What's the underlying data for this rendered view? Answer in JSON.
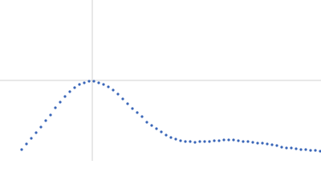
{
  "chart_data": {
    "type": "scatter",
    "color": "#3a66b8",
    "xlim": [
      0,
      400
    ],
    "ylim": [
      0,
      200
    ],
    "reference_lines": {
      "x": 115,
      "y": 100,
      "color": "#d0d0d0"
    },
    "x": [
      27,
      33,
      39,
      45,
      51,
      57,
      63,
      69,
      75,
      81,
      87,
      93,
      99,
      105,
      111,
      117,
      123,
      129,
      135,
      141,
      147,
      153,
      159,
      165,
      171,
      177,
      183,
      189,
      195,
      201,
      207,
      213,
      219,
      225,
      231,
      237,
      243,
      249,
      255,
      261,
      267,
      273,
      279,
      285,
      291,
      297,
      303,
      309,
      315,
      321,
      327,
      333,
      339,
      345,
      351,
      357,
      363,
      369,
      375,
      381,
      387,
      393,
      399
    ],
    "values": [
      14,
      21,
      28,
      35,
      42,
      50,
      57,
      66,
      73,
      80,
      86,
      91,
      95,
      97,
      99,
      99,
      97,
      95,
      92,
      88,
      83,
      77,
      71,
      65,
      60,
      55,
      48,
      44,
      40,
      36,
      32,
      29,
      27,
      25,
      24,
      24,
      23,
      24,
      24,
      24,
      25,
      25,
      26,
      26,
      26,
      25,
      24,
      24,
      23,
      22,
      22,
      21,
      20,
      19,
      17,
      16,
      16,
      15,
      14,
      14,
      13,
      13,
      12
    ]
  }
}
